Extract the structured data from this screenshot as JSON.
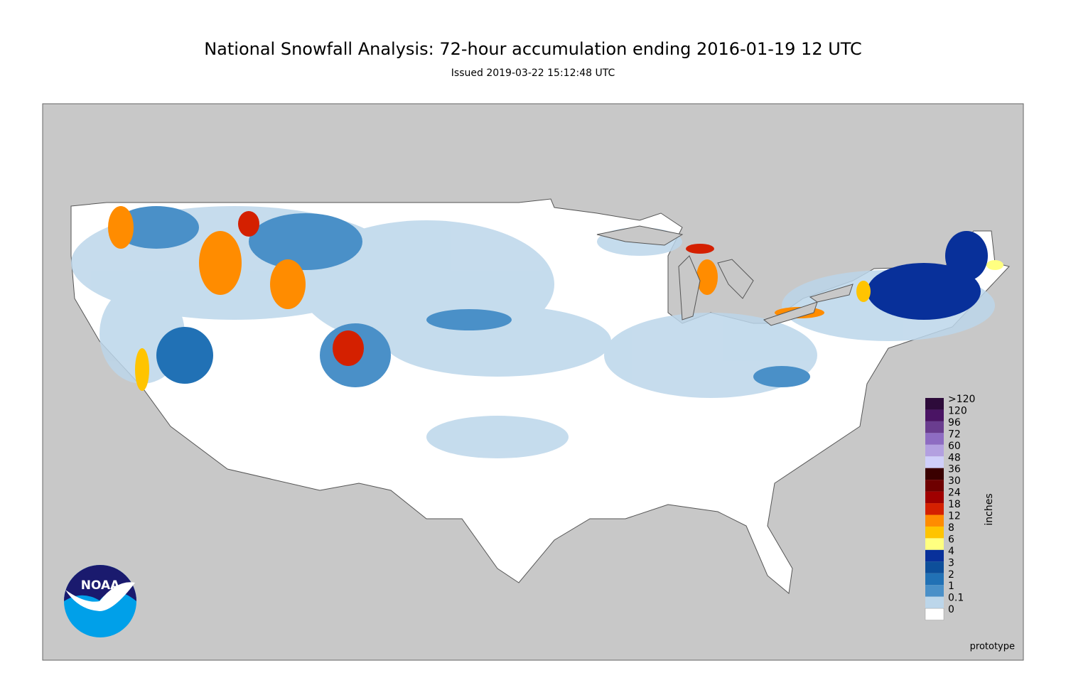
{
  "title": "National Snowfall Analysis: 72-hour accumulation ending 2016-01-19 12 UTC",
  "subtitle": "Issued 2019-03-22 15:12:48 UTC",
  "legend": {
    "unit": "inches",
    "items": [
      {
        "label": ">120",
        "color": "#2d0b3a"
      },
      {
        "label": "120",
        "color": "#4a1464"
      },
      {
        "label": "96",
        "color": "#6a3d8f"
      },
      {
        "label": "72",
        "color": "#8e6cc2"
      },
      {
        "label": "60",
        "color": "#b3a0e0"
      },
      {
        "label": "48",
        "color": "#cfcffa"
      },
      {
        "label": "36",
        "color": "#3a0000"
      },
      {
        "label": "30",
        "color": "#6e0000"
      },
      {
        "label": "24",
        "color": "#a00000"
      },
      {
        "label": "18",
        "color": "#d42000"
      },
      {
        "label": "12",
        "color": "#ff8c00"
      },
      {
        "label": "8",
        "color": "#ffc400"
      },
      {
        "label": "6",
        "color": "#ffff80"
      },
      {
        "label": "4",
        "color": "#08309a"
      },
      {
        "label": "3",
        "color": "#0d4f9a"
      },
      {
        "label": "2",
        "color": "#2171b5"
      },
      {
        "label": "1",
        "color": "#4a90c8"
      },
      {
        "label": "0.1",
        "color": "#bcd6ea"
      },
      {
        "label": "0",
        "color": "#ffffff"
      }
    ]
  },
  "footer": "prototype",
  "logo": "NOAA"
}
